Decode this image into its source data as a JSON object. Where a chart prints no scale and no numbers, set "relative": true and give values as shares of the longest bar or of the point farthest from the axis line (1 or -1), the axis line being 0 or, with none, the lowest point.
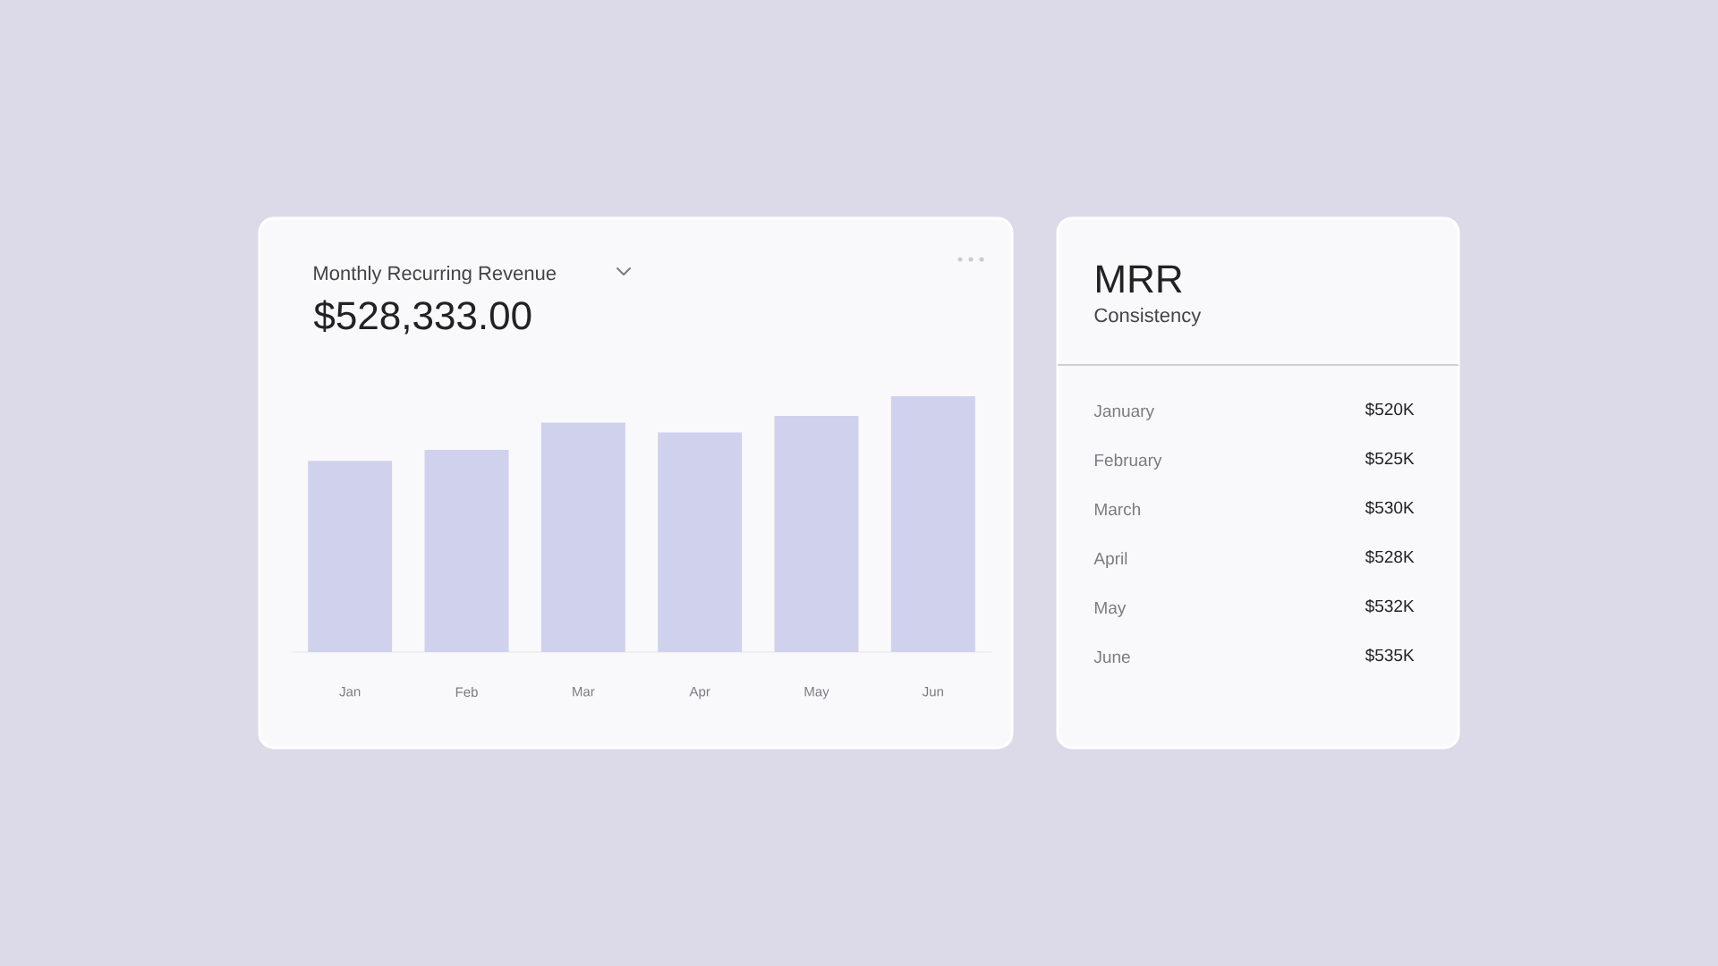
{
  "chart_data": [
    {
      "type": "bar",
      "title": "Monthly Recurring Revenue",
      "subtitle": "$528,333.00",
      "categories": [
        "Jan",
        "Feb",
        "Mar",
        "Apr",
        "May",
        "Jun"
      ],
      "values": [
        0.747,
        0.79,
        0.897,
        0.858,
        0.923,
        1
      ],
      "relative": true,
      "color": "#d0d1ec"
    },
    {
      "type": "other",
      "title": "MRR",
      "subtitle": "Consistency",
      "annotations": [
        "January",
        "$520K",
        "February",
        "$525K",
        "March",
        "$530K",
        "April",
        "$528K",
        "May",
        "$532K",
        "June",
        "$535K"
      ]
    }
  ]
}
